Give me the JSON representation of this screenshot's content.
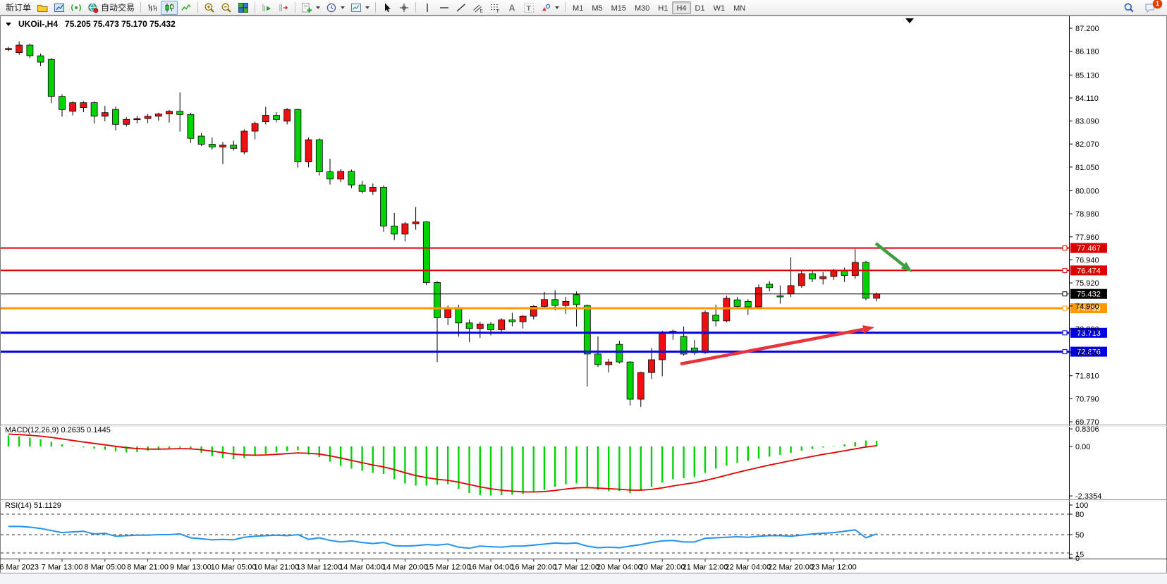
{
  "toolbar": {
    "groups": [
      [
        {
          "type": "text",
          "name": "new-order-button",
          "label": "新订单"
        },
        {
          "type": "icon",
          "name": "profiles-icon",
          "icon": "profiles"
        },
        {
          "type": "icon",
          "name": "market-watch-icon",
          "icon": "charts"
        },
        {
          "type": "icon",
          "name": "signal-icon",
          "icon": "signal"
        },
        {
          "type": "icontext",
          "name": "autotrading-button",
          "icon": "globe",
          "label": "自动交易"
        }
      ],
      [
        {
          "type": "icon",
          "name": "bar-chart-icon",
          "icon": "barchart"
        },
        {
          "type": "icon",
          "name": "candlestick-chart-icon",
          "icon": "candle",
          "active": true
        },
        {
          "type": "icon",
          "name": "line-chart-icon",
          "icon": "linechart"
        }
      ],
      [
        {
          "type": "icon",
          "name": "zoom-in-icon",
          "icon": "zoomin"
        },
        {
          "type": "icon",
          "name": "zoom-out-icon",
          "icon": "zoomout"
        },
        {
          "type": "icon",
          "name": "tile-windows-icon",
          "icon": "tile"
        }
      ],
      [
        {
          "type": "icon",
          "name": "auto-scroll-icon",
          "icon": "autoscroll"
        },
        {
          "type": "icon",
          "name": "chart-shift-icon",
          "icon": "shift"
        }
      ],
      [
        {
          "type": "icon",
          "name": "indicators-icon",
          "icon": "indicators",
          "dropdown": true
        },
        {
          "type": "icon",
          "name": "periods-icon",
          "icon": "clock",
          "dropdown": true
        },
        {
          "type": "icon",
          "name": "templates-icon",
          "icon": "template",
          "dropdown": true
        }
      ],
      [
        {
          "type": "icon",
          "name": "cursor-icon",
          "icon": "cursor"
        },
        {
          "type": "icon",
          "name": "crosshair-icon",
          "icon": "crosshair"
        }
      ],
      [
        {
          "type": "icon",
          "name": "vertical-line-icon",
          "icon": "vline"
        },
        {
          "type": "icon",
          "name": "horizontal-line-icon",
          "icon": "hline"
        },
        {
          "type": "icon",
          "name": "trendline-icon",
          "icon": "trend"
        },
        {
          "type": "icon",
          "name": "equidistant-channel-icon",
          "icon": "channel"
        },
        {
          "type": "icon",
          "name": "fibonacci-icon",
          "icon": "fibo"
        },
        {
          "type": "icon",
          "name": "text-icon",
          "icon": "textA"
        },
        {
          "type": "icon",
          "name": "text-label-icon",
          "icon": "labelT"
        },
        {
          "type": "icon",
          "name": "shapes-icon",
          "icon": "shapes",
          "dropdown": true
        }
      ]
    ],
    "timeframes": [
      "M1",
      "M5",
      "M15",
      "M30",
      "H1",
      "H4",
      "D1",
      "W1",
      "MN"
    ],
    "active_timeframe": "H4",
    "right": [
      {
        "name": "search-icon",
        "icon": "search"
      },
      {
        "name": "notifications-icon",
        "icon": "chat",
        "badge": "1"
      }
    ]
  },
  "chart": {
    "symbol_period": "UKOil-,H4",
    "ohlc_text": "75.205 75.473 75.170 75.432"
  },
  "chart_data": {
    "type": "candlestick",
    "title": "UKOil-,H4",
    "ohlc_display": "75.205 75.473 75.170 75.432",
    "ylim": [
      69.5,
      87.6
    ],
    "price_ticks": [
      "87.200",
      "86.180",
      "85.130",
      "84.110",
      "83.090",
      "82.070",
      "81.050",
      "80.000",
      "78.980",
      "77.960",
      "76.940",
      "75.920",
      "74.900",
      "73.880",
      "72.860",
      "71.810",
      "70.790",
      "69.770"
    ],
    "time_labels": [
      "6 Mar 2023",
      "7 Mar 13:00",
      "8 Mar 05:00",
      "8 Mar 21:00",
      "9 Mar 13:00",
      "10 Mar 05:00",
      "10 Mar 21:00",
      "13 Mar 12:00",
      "14 Mar 04:00",
      "14 Mar 20:00",
      "15 Mar 12:00",
      "16 Mar 04:00",
      "16 Mar 20:00",
      "17 Mar 12:00",
      "20 Mar 04:00",
      "20 Mar 20:00",
      "21 Mar 12:00",
      "22 Mar 04:00",
      "22 Mar 20:00",
      "23 Mar 12:00"
    ],
    "candles": [
      [
        86.28,
        86.38,
        86.18,
        86.3
      ],
      [
        86.12,
        86.62,
        86.02,
        86.45
      ],
      [
        86.45,
        86.52,
        85.88,
        85.98
      ],
      [
        85.98,
        86.08,
        85.52,
        85.7
      ],
      [
        85.82,
        85.88,
        83.88,
        84.18
      ],
      [
        84.18,
        84.28,
        83.28,
        83.6
      ],
      [
        83.52,
        83.96,
        83.34,
        83.9
      ],
      [
        83.68,
        83.97,
        83.48,
        83.9
      ],
      [
        83.9,
        83.96,
        82.98,
        83.3
      ],
      [
        83.3,
        83.76,
        83.08,
        83.46
      ],
      [
        83.6,
        83.72,
        82.68,
        82.94
      ],
      [
        82.94,
        83.26,
        82.84,
        83.16
      ],
      [
        83.16,
        83.32,
        82.98,
        83.2
      ],
      [
        83.2,
        83.4,
        83.0,
        83.3
      ],
      [
        83.3,
        83.46,
        83.1,
        83.4
      ],
      [
        83.4,
        83.58,
        83.02,
        83.52
      ],
      [
        83.52,
        84.36,
        82.62,
        83.38
      ],
      [
        83.38,
        83.46,
        82.12,
        82.32
      ],
      [
        82.42,
        82.56,
        81.98,
        82.06
      ],
      [
        82.06,
        82.36,
        81.82,
        81.94
      ],
      [
        81.94,
        82.16,
        81.18,
        82.02
      ],
      [
        82.02,
        82.22,
        81.78,
        81.88
      ],
      [
        81.72,
        82.72,
        81.62,
        82.64
      ],
      [
        82.64,
        83.06,
        82.28,
        82.98
      ],
      [
        83.06,
        83.72,
        82.94,
        83.34
      ],
      [
        83.34,
        83.48,
        83.04,
        83.16
      ],
      [
        83.08,
        83.66,
        82.94,
        83.6
      ],
      [
        83.6,
        83.64,
        81.02,
        81.28
      ],
      [
        81.28,
        82.36,
        81.04,
        82.26
      ],
      [
        82.26,
        82.32,
        80.68,
        80.84
      ],
      [
        80.84,
        81.42,
        80.28,
        80.52
      ],
      [
        80.52,
        80.96,
        80.38,
        80.86
      ],
      [
        80.86,
        80.94,
        80.12,
        80.26
      ],
      [
        80.26,
        80.44,
        79.88,
        79.98
      ],
      [
        79.98,
        80.32,
        79.82,
        80.16
      ],
      [
        80.16,
        80.24,
        78.18,
        78.44
      ],
      [
        78.44,
        79.02,
        77.82,
        78.08
      ],
      [
        78.08,
        78.62,
        77.76,
        78.54
      ],
      [
        78.54,
        79.28,
        78.28,
        78.62
      ],
      [
        78.62,
        78.66,
        75.82,
        75.94
      ],
      [
        75.94,
        76.0,
        72.42,
        74.38
      ],
      [
        74.38,
        74.92,
        74.05,
        74.8
      ],
      [
        74.8,
        74.95,
        73.55,
        74.15
      ],
      [
        74.15,
        74.3,
        73.3,
        73.9
      ],
      [
        73.9,
        74.2,
        73.48,
        74.1
      ],
      [
        74.1,
        74.18,
        73.6,
        73.85
      ],
      [
        73.85,
        74.35,
        73.72,
        74.28
      ],
      [
        74.28,
        74.6,
        74.0,
        74.2
      ],
      [
        74.2,
        74.5,
        73.9,
        74.45
      ],
      [
        74.45,
        74.95,
        74.3,
        74.88
      ],
      [
        74.88,
        75.52,
        74.8,
        75.18
      ],
      [
        75.18,
        75.6,
        74.7,
        74.92
      ],
      [
        74.92,
        75.3,
        74.55,
        75.1
      ],
      [
        75.4,
        75.55,
        73.99,
        74.96
      ],
      [
        74.92,
        74.96,
        71.33,
        72.77
      ],
      [
        72.77,
        73.55,
        72.2,
        72.3
      ],
      [
        72.3,
        72.55,
        71.95,
        72.42
      ],
      [
        73.2,
        73.36,
        72.35,
        72.42
      ],
      [
        72.42,
        72.46,
        70.49,
        70.77
      ],
      [
        70.77,
        71.98,
        70.43,
        71.95
      ],
      [
        71.95,
        73.04,
        71.67,
        72.52
      ],
      [
        72.52,
        73.8,
        71.79,
        73.71
      ],
      [
        73.71,
        73.85,
        73.4,
        73.78
      ],
      [
        73.55,
        73.99,
        72.7,
        72.77
      ],
      [
        73.04,
        73.39,
        72.72,
        72.83
      ],
      [
        72.83,
        74.7,
        72.78,
        74.61
      ],
      [
        74.49,
        74.96,
        73.99,
        74.24
      ],
      [
        74.24,
        75.35,
        74.18,
        75.24
      ],
      [
        75.17,
        75.3,
        74.8,
        74.88
      ],
      [
        75.1,
        75.2,
        74.5,
        74.86
      ],
      [
        74.86,
        75.85,
        74.75,
        75.71
      ],
      [
        75.86,
        76.0,
        75.55,
        75.71
      ],
      [
        75.35,
        75.8,
        75.0,
        75.3
      ],
      [
        75.43,
        77.05,
        75.3,
        75.8
      ],
      [
        75.8,
        76.45,
        75.7,
        76.33
      ],
      [
        76.33,
        76.5,
        75.95,
        76.1
      ],
      [
        76.1,
        76.4,
        75.85,
        76.2
      ],
      [
        76.2,
        76.55,
        76.05,
        76.46
      ],
      [
        76.46,
        76.6,
        75.96,
        76.25
      ],
      [
        76.25,
        77.42,
        76.1,
        76.83
      ],
      [
        76.83,
        76.9,
        75.15,
        75.24
      ],
      [
        75.24,
        75.5,
        75.1,
        75.43
      ]
    ],
    "hlines": [
      {
        "price": 77.467,
        "label": "77.467",
        "color": "#dd0000",
        "width": 2
      },
      {
        "price": 76.474,
        "label": "76.474",
        "color": "#dd0000",
        "width": 2
      },
      {
        "price": 75.432,
        "label": "75.432",
        "color": "#000000",
        "width": 1
      },
      {
        "price": 74.799,
        "label": "74.799",
        "color": "#ff9800",
        "width": 3
      },
      {
        "price": 73.713,
        "label": "73.713",
        "color": "#0000e0",
        "width": 3
      },
      {
        "price": 72.876,
        "label": "72.876",
        "color": "#0000e0",
        "width": 3
      }
    ],
    "annotations": [
      {
        "name": "green-down-arrow",
        "color": "#3f9e3f",
        "from": [
          1242,
          345
        ],
        "to": [
          1294,
          386
        ]
      },
      {
        "name": "red-up-arrow",
        "color": "#e8323c",
        "from": [
          965,
          516
        ],
        "to": [
          1240,
          464
        ]
      }
    ],
    "macd": {
      "label": "MACD(12,26,9) 0.2635 0.1445",
      "scale_labels": [
        "0.8306",
        "0.00",
        "-2.3354"
      ],
      "values": [
        0.52,
        0.48,
        0.42,
        0.34,
        0.22,
        0.1,
        0.02,
        -0.04,
        -0.1,
        -0.16,
        -0.24,
        -0.28,
        -0.26,
        -0.2,
        -0.14,
        -0.08,
        -0.06,
        -0.14,
        -0.3,
        -0.45,
        -0.55,
        -0.6,
        -0.55,
        -0.45,
        -0.36,
        -0.28,
        -0.22,
        -0.18,
        -0.38,
        -0.5,
        -0.72,
        -0.92,
        -1.05,
        -1.15,
        -1.25,
        -1.3,
        -1.55,
        -1.75,
        -1.85,
        -1.85,
        -1.8,
        -1.78,
        -2.0,
        -2.2,
        -2.3,
        -2.32,
        -2.3,
        -2.28,
        -2.25,
        -2.18,
        -2.05,
        -1.9,
        -1.78,
        -1.75,
        -1.9,
        -2.05,
        -2.1,
        -2.1,
        -2.2,
        -2.1,
        -1.9,
        -1.7,
        -1.55,
        -1.5,
        -1.45,
        -1.25,
        -1.05,
        -0.9,
        -0.78,
        -0.68,
        -0.58,
        -0.48,
        -0.4,
        -0.3,
        -0.2,
        -0.12,
        -0.05,
        0.02,
        0.1,
        0.2,
        0.28,
        0.2635
      ],
      "signal_alpha": 0.22,
      "signal_start": 0.6
    },
    "rsi": {
      "label": "RSI(14) 51.1129",
      "levels": [
        "100",
        "80",
        "50",
        "15",
        "0"
      ],
      "dashed_levels": [
        80,
        50,
        15
      ],
      "values": [
        62,
        62,
        61,
        59,
        56,
        53,
        54,
        55,
        51,
        52,
        47,
        48,
        49,
        49,
        50,
        50,
        51,
        44,
        42,
        40,
        41,
        40,
        45,
        47,
        48,
        49,
        48,
        50,
        41,
        44,
        39,
        36,
        38,
        35,
        33,
        35,
        29,
        28,
        29,
        31,
        30,
        32,
        26,
        24,
        28,
        27,
        26,
        28,
        28,
        30,
        32,
        34,
        33,
        34,
        28,
        25,
        26,
        25,
        28,
        31,
        35,
        38,
        39,
        36,
        36,
        43,
        44,
        45,
        46,
        45,
        47,
        48,
        48,
        47,
        49,
        51,
        52,
        53,
        55,
        57,
        44,
        51.1
      ]
    },
    "colors": {
      "bull": "#ee1010",
      "bear": "#00d300",
      "wick": "#000000",
      "macd_histogram": "#00d300",
      "macd_signal": "#e00000",
      "rsi_line": "#2492f0",
      "axis_text": "#000000"
    }
  }
}
